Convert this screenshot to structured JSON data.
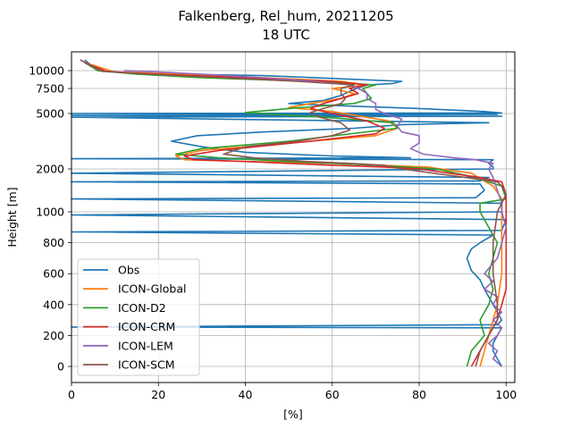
{
  "chart_data": {
    "type": "line",
    "title": "Falkenberg, Rel_hum, 20211205",
    "subtitle": "18 UTC",
    "xlabel": "[%]",
    "ylabel": "Height [m]",
    "xlim": [
      0,
      102
    ],
    "x_ticks": [
      0,
      20,
      40,
      60,
      80,
      100
    ],
    "y_axis": "piecewise",
    "y_ticks": [
      0,
      200,
      400,
      600,
      800,
      1000,
      2000,
      5000,
      7500,
      10000
    ],
    "grid": true,
    "legend_position": "lower-left",
    "series": [
      {
        "name": "Obs",
        "color": "#1f77b4",
        "points": [
          [
            99,
            0
          ],
          [
            98,
            50
          ],
          [
            97,
            100
          ],
          [
            97,
            150
          ],
          [
            98,
            200
          ],
          [
            99,
            250
          ],
          [
            0,
            255
          ],
          [
            98,
            270
          ],
          [
            99,
            300
          ],
          [
            98,
            350
          ],
          [
            97,
            400
          ],
          [
            96,
            450
          ],
          [
            95,
            500
          ],
          [
            94,
            560
          ],
          [
            92,
            620
          ],
          [
            91,
            700
          ],
          [
            92,
            760
          ],
          [
            94,
            800
          ],
          [
            97,
            850
          ],
          [
            0,
            870
          ],
          [
            99,
            880
          ],
          [
            100,
            950
          ],
          [
            0,
            980
          ],
          [
            99,
            1000
          ],
          [
            99,
            1200
          ],
          [
            0,
            1300
          ],
          [
            93,
            1330
          ],
          [
            95,
            1500
          ],
          [
            94,
            1650
          ],
          [
            0,
            1700
          ],
          [
            94,
            1720
          ],
          [
            96,
            1800
          ],
          [
            0,
            1900
          ],
          [
            97,
            2000
          ],
          [
            97,
            2100
          ],
          [
            96,
            2300
          ],
          [
            97,
            2500
          ],
          [
            0,
            2550
          ],
          [
            78,
            2600
          ],
          [
            60,
            2700
          ],
          [
            40,
            2900
          ],
          [
            30,
            3200
          ],
          [
            23,
            3500
          ],
          [
            29,
            3800
          ],
          [
            44,
            4000
          ],
          [
            65,
            4200
          ],
          [
            76,
            4400
          ],
          [
            96,
            4500
          ],
          [
            0,
            4800
          ],
          [
            99,
            4850
          ],
          [
            0,
            4900
          ],
          [
            98,
            4950
          ],
          [
            0,
            5000
          ],
          [
            99,
            5050
          ],
          [
            95,
            5200
          ],
          [
            80,
            5500
          ],
          [
            60,
            5800
          ],
          [
            50,
            6000
          ],
          [
            58,
            6300
          ],
          [
            62,
            6800
          ],
          [
            64,
            7200
          ],
          [
            66,
            7600
          ],
          [
            68,
            8000
          ],
          [
            74,
            8200
          ],
          [
            76,
            8500
          ],
          [
            64,
            8800
          ],
          [
            44,
            9300
          ],
          [
            25,
            9500
          ],
          [
            12,
            9700
          ],
          [
            6,
            10000
          ],
          [
            3,
            10400
          ]
        ]
      },
      {
        "name": "ICON-Global",
        "color": "#ff7f0e",
        "points": [
          [
            94,
            0
          ],
          [
            95,
            100
          ],
          [
            96,
            200
          ],
          [
            97,
            300
          ],
          [
            98,
            400
          ],
          [
            99,
            600
          ],
          [
            99,
            800
          ],
          [
            99,
            1000
          ],
          [
            99,
            1300
          ],
          [
            97,
            1600
          ],
          [
            92,
            1900
          ],
          [
            82,
            2100
          ],
          [
            60,
            2300
          ],
          [
            40,
            2400
          ],
          [
            26,
            2500
          ],
          [
            24,
            2700
          ],
          [
            30,
            3000
          ],
          [
            50,
            3400
          ],
          [
            70,
            3800
          ],
          [
            75,
            4200
          ],
          [
            73,
            4600
          ],
          [
            60,
            5200
          ],
          [
            50,
            5600
          ],
          [
            55,
            6000
          ],
          [
            62,
            6500
          ],
          [
            65,
            7000
          ],
          [
            60,
            7500
          ],
          [
            68,
            8000
          ],
          [
            62,
            8500
          ],
          [
            45,
            9000
          ],
          [
            25,
            9500
          ],
          [
            10,
            9800
          ],
          [
            3,
            10300
          ]
        ]
      },
      {
        "name": "ICON-D2",
        "color": "#2ca02c",
        "points": [
          [
            91,
            0
          ],
          [
            92,
            100
          ],
          [
            95,
            200
          ],
          [
            94,
            300
          ],
          [
            96,
            400
          ],
          [
            97,
            500
          ],
          [
            96,
            600
          ],
          [
            98,
            800
          ],
          [
            96,
            900
          ],
          [
            94,
            1000
          ],
          [
            94,
            1200
          ],
          [
            100,
            1300
          ],
          [
            99,
            1600
          ],
          [
            93,
            1800
          ],
          [
            84,
            2000
          ],
          [
            70,
            2200
          ],
          [
            50,
            2400
          ],
          [
            34,
            2600
          ],
          [
            24,
            2800
          ],
          [
            30,
            3100
          ],
          [
            50,
            3500
          ],
          [
            75,
            4200
          ],
          [
            74,
            4500
          ],
          [
            58,
            4800
          ],
          [
            40,
            5100
          ],
          [
            50,
            5500
          ],
          [
            65,
            6000
          ],
          [
            69,
            6500
          ],
          [
            68,
            7000
          ],
          [
            67,
            7500
          ],
          [
            70,
            8000
          ],
          [
            55,
            8500
          ],
          [
            30,
            9000
          ],
          [
            15,
            9500
          ],
          [
            6,
            10000
          ],
          [
            3,
            10300
          ]
        ]
      },
      {
        "name": "ICON-CRM",
        "color": "#d62728",
        "points": [
          [
            92,
            0
          ],
          [
            94,
            100
          ],
          [
            96,
            200
          ],
          [
            98,
            300
          ],
          [
            99,
            400
          ],
          [
            100,
            500
          ],
          [
            100,
            700
          ],
          [
            100,
            900
          ],
          [
            100,
            1200
          ],
          [
            100,
            1400
          ],
          [
            99,
            1700
          ],
          [
            94,
            1800
          ],
          [
            80,
            2000
          ],
          [
            72,
            2100
          ],
          [
            60,
            2200
          ],
          [
            40,
            2400
          ],
          [
            28,
            2500
          ],
          [
            26,
            2700
          ],
          [
            34,
            3000
          ],
          [
            55,
            3500
          ],
          [
            70,
            3900
          ],
          [
            72,
            4200
          ],
          [
            68,
            4600
          ],
          [
            60,
            5000
          ],
          [
            55,
            5500
          ],
          [
            58,
            6000
          ],
          [
            62,
            6500
          ],
          [
            66,
            7000
          ],
          [
            64,
            7500
          ],
          [
            68,
            8000
          ],
          [
            60,
            8500
          ],
          [
            40,
            9000
          ],
          [
            20,
            9500
          ],
          [
            8,
            9900
          ],
          [
            3,
            10300
          ]
        ]
      },
      {
        "name": "ICON-LEM",
        "color": "#9467bd",
        "points": [
          [
            99,
            0
          ],
          [
            97,
            50
          ],
          [
            98,
            100
          ],
          [
            96,
            150
          ],
          [
            98,
            200
          ],
          [
            99,
            250
          ],
          [
            97,
            300
          ],
          [
            99,
            350
          ],
          [
            97,
            400
          ],
          [
            98,
            450
          ],
          [
            95,
            500
          ],
          [
            97,
            550
          ],
          [
            95,
            600
          ],
          [
            98,
            700
          ],
          [
            99,
            800
          ],
          [
            100,
            900
          ],
          [
            99,
            1000
          ],
          [
            99,
            1200
          ],
          [
            98,
            1500
          ],
          [
            97,
            1800
          ],
          [
            96,
            2000
          ],
          [
            97,
            2300
          ],
          [
            93,
            2500
          ],
          [
            88,
            2600
          ],
          [
            81,
            2800
          ],
          [
            78,
            3100
          ],
          [
            80,
            3400
          ],
          [
            80,
            3800
          ],
          [
            76,
            4000
          ],
          [
            75,
            4300
          ],
          [
            76,
            4700
          ],
          [
            72,
            5000
          ],
          [
            70,
            5400
          ],
          [
            70,
            6000
          ],
          [
            68,
            6500
          ],
          [
            68,
            7000
          ],
          [
            66,
            7500
          ],
          [
            64,
            8000
          ],
          [
            56,
            8500
          ],
          [
            44,
            9000
          ],
          [
            30,
            9500
          ],
          [
            20,
            9800
          ],
          [
            12,
            10000
          ]
        ]
      },
      {
        "name": "ICON-SCM",
        "color": "#8c564b",
        "points": [
          [
            93,
            0
          ],
          [
            94,
            100
          ],
          [
            96,
            200
          ],
          [
            98,
            300
          ],
          [
            98,
            400
          ],
          [
            97,
            600
          ],
          [
            97,
            800
          ],
          [
            98,
            1000
          ],
          [
            99,
            1200
          ],
          [
            100,
            1400
          ],
          [
            99,
            1600
          ],
          [
            98,
            1700
          ],
          [
            76,
            2000
          ],
          [
            72,
            2200
          ],
          [
            64,
            2300
          ],
          [
            54,
            2400
          ],
          [
            42,
            2600
          ],
          [
            35,
            2800
          ],
          [
            40,
            3200
          ],
          [
            52,
            3500
          ],
          [
            60,
            3800
          ],
          [
            64,
            4100
          ],
          [
            62,
            4500
          ],
          [
            57,
            4800
          ],
          [
            55,
            5100
          ],
          [
            58,
            5500
          ],
          [
            62,
            6000
          ],
          [
            63,
            6500
          ],
          [
            62,
            7000
          ],
          [
            62,
            7500
          ],
          [
            65,
            8000
          ],
          [
            52,
            8500
          ],
          [
            35,
            9000
          ],
          [
            18,
            9500
          ],
          [
            7,
            9900
          ],
          [
            2,
            10400
          ]
        ]
      }
    ]
  }
}
